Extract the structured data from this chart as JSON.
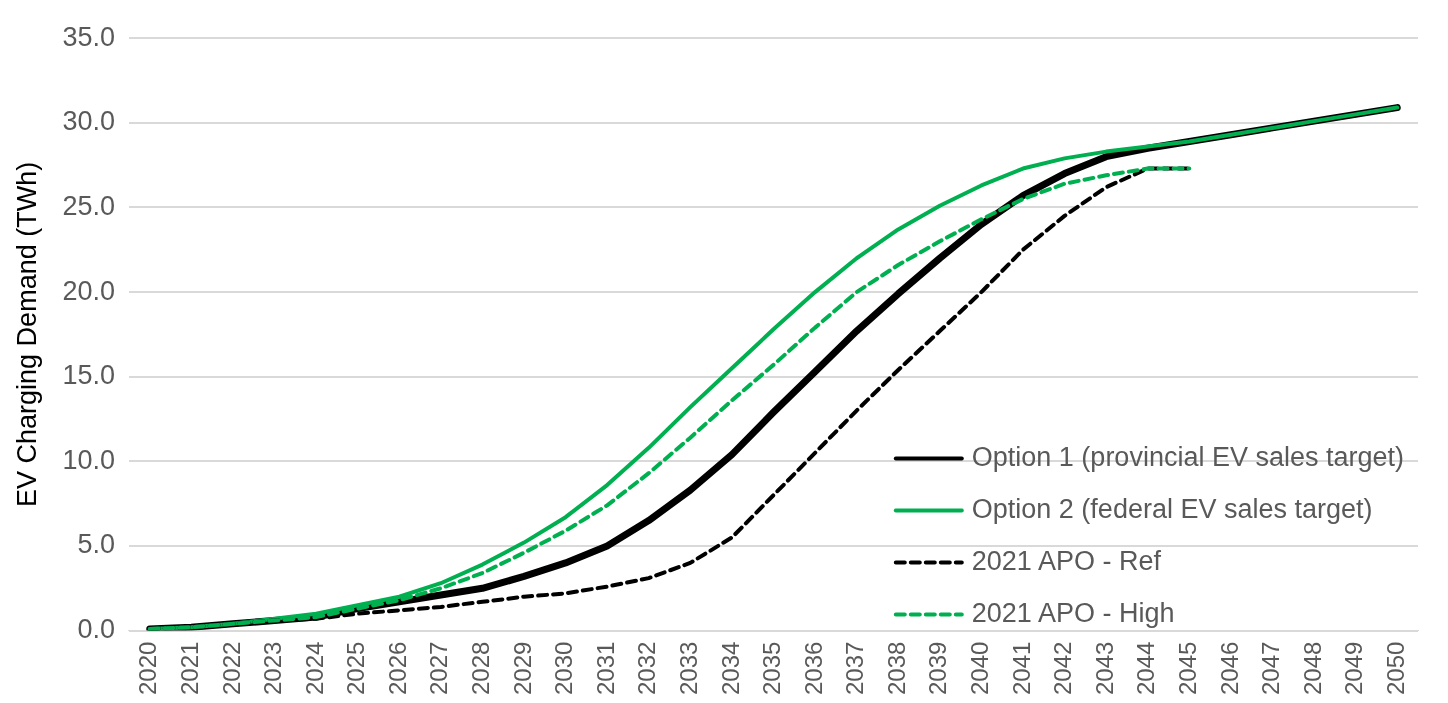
{
  "chart_data": {
    "type": "line",
    "ylabel": "EV Charging Demand (TWh)",
    "categories": [
      "2020",
      "2021",
      "2022",
      "2023",
      "2024",
      "2025",
      "2026",
      "2027",
      "2028",
      "2029",
      "2030",
      "2031",
      "2032",
      "2033",
      "2034",
      "2035",
      "2036",
      "2037",
      "2038",
      "2039",
      "2040",
      "2041",
      "2042",
      "2043",
      "2044",
      "2045",
      "2046",
      "2047",
      "2048",
      "2049",
      "2050"
    ],
    "ylim": [
      0,
      35
    ],
    "yticks": [
      {
        "value": 0,
        "label": "0.0"
      },
      {
        "value": 5,
        "label": "5.0"
      },
      {
        "value": 10,
        "label": "10.0"
      },
      {
        "value": 15,
        "label": "15.0"
      },
      {
        "value": 20,
        "label": "20.0"
      },
      {
        "value": 25,
        "label": "25.0"
      },
      {
        "value": 30,
        "label": "30.0"
      },
      {
        "value": 35,
        "label": "35.0"
      }
    ],
    "grid": "y",
    "legend": "bottom right",
    "marker": "none",
    "series": [
      {
        "name": "Option 1 (provincial EV sales target)",
        "color": "#000000",
        "line_style": "solid",
        "values": [
          0.1,
          0.2,
          0.4,
          0.6,
          0.8,
          1.3,
          1.7,
          2.1,
          2.5,
          3.2,
          4.0,
          5.0,
          6.5,
          8.3,
          10.4,
          12.9,
          15.3,
          17.7,
          19.9,
          22.0,
          24.0,
          25.7,
          27.0,
          28.0,
          28.5,
          28.9,
          29.3,
          29.7,
          30.1,
          30.5,
          30.9
        ]
      },
      {
        "name": "Option 2 (federal EV sales target)",
        "color": "#00b050",
        "line_style": "solid",
        "values": [
          0.1,
          0.2,
          0.4,
          0.7,
          1.0,
          1.5,
          2.0,
          2.8,
          3.9,
          5.2,
          6.7,
          8.6,
          10.8,
          13.2,
          15.5,
          17.8,
          20.0,
          22.0,
          23.7,
          25.1,
          26.3,
          27.3,
          27.9,
          28.3,
          28.6,
          28.9,
          29.3,
          29.7,
          30.1,
          30.5,
          30.9
        ]
      },
      {
        "name": "2021 APO - Ref",
        "color": "#000000",
        "line_style": "dashed",
        "values": [
          0.1,
          0.2,
          0.4,
          0.6,
          0.7,
          1.0,
          1.2,
          1.4,
          1.7,
          2.0,
          2.2,
          2.6,
          3.1,
          4.0,
          5.5,
          8.0,
          10.5,
          13.0,
          15.4,
          17.7,
          20.0,
          22.5,
          24.5,
          26.2,
          27.3,
          27.3,
          null,
          null,
          null,
          null,
          null
        ]
      },
      {
        "name": "2021 APO - High",
        "color": "#00b050",
        "line_style": "dashed",
        "values": [
          0.1,
          0.2,
          0.4,
          0.6,
          0.8,
          1.3,
          1.8,
          2.5,
          3.4,
          4.6,
          5.9,
          7.4,
          9.3,
          11.4,
          13.6,
          15.7,
          17.9,
          20.0,
          21.6,
          23.0,
          24.3,
          25.5,
          26.4,
          26.9,
          27.3,
          27.3,
          null,
          null,
          null,
          null,
          null
        ]
      }
    ]
  }
}
